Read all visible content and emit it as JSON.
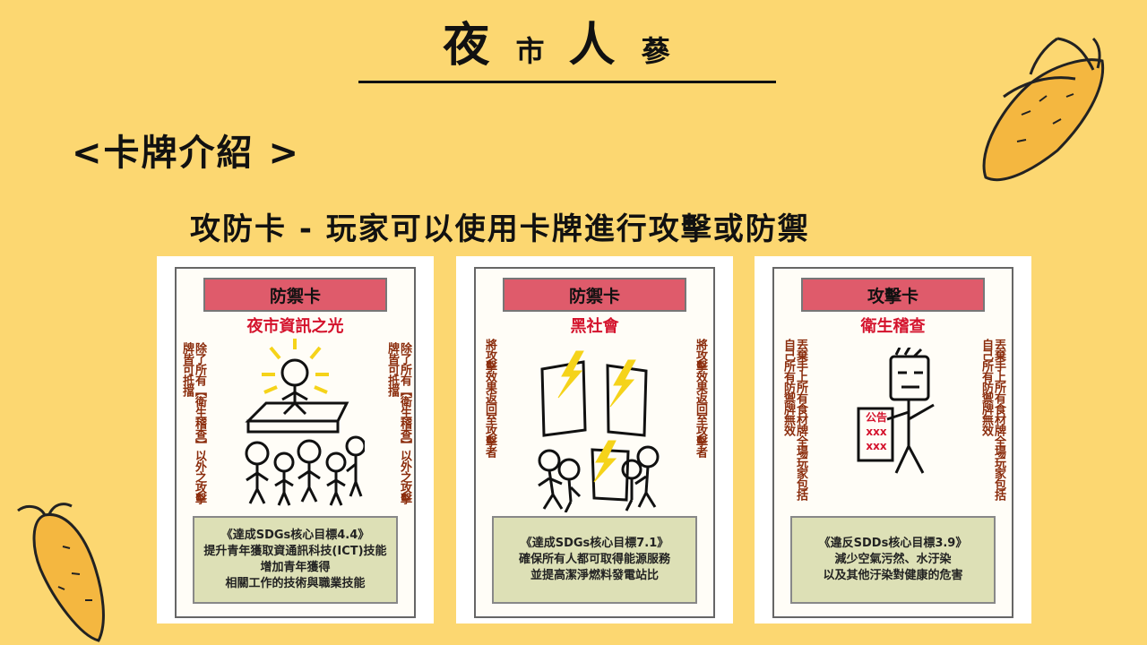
{
  "title": {
    "char1": "夜",
    "char2": "市",
    "char3": "人",
    "char4": "蔘"
  },
  "heading": "<卡牌介紹 >",
  "subheading": "攻防卡 - 玩家可以使用卡牌進行攻擊或防禦",
  "cards": [
    {
      "type": "防禦卡",
      "name": "夜市資訊之光",
      "side_left": [
        "除了",
        "所有",
        "【衛生稽查】",
        "以外之",
        "攻擊",
        "牌",
        "皆可",
        "抵擋"
      ],
      "side_right": [
        "除了",
        "所有",
        "【衛生稽查】",
        "以外之",
        "攻擊",
        "牌",
        "皆可",
        "抵擋"
      ],
      "goal": [
        "《達成SDGs核心目標4.4》",
        "提升青年獲取資通訊科技(ICT)技能",
        "增加青年獲得",
        "相關工作的技術與職業技能"
      ]
    },
    {
      "type": "防禦卡",
      "name": "黑社會",
      "side_left": [
        "將攻擊效果返回至攻擊者"
      ],
      "side_right": [
        "將攻擊效果返回至攻擊者"
      ],
      "goal": [
        "《達成SDGs核心目標7.1》",
        "確保所有人都可取得能源服務",
        "並提高潔淨燃料發電站比"
      ]
    },
    {
      "type": "攻擊卡",
      "name": "衛生稽查",
      "side_left": [
        "丟棄手上所有食材牌",
        "全場玩家包括自己",
        "所有防禦牌無效"
      ],
      "side_right": [
        "丟棄手上所有食材牌",
        "全場玩家包括自己",
        "所有防禦牌無效"
      ],
      "notice": {
        "label": "公告",
        "line1": "xxx",
        "line2": "xxx"
      },
      "goal": [
        "《違反SDDs核心目標3.9》",
        "減少空氣污然、水汙染",
        "以及其他汙染對健康的危害"
      ]
    }
  ]
}
